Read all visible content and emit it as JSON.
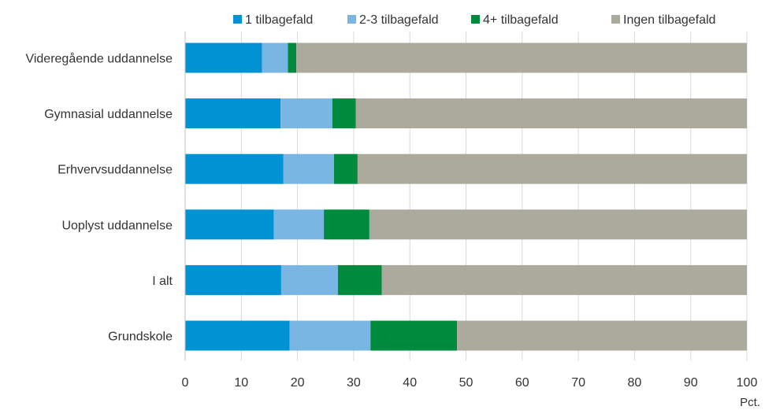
{
  "chart_data": {
    "type": "bar",
    "orientation": "horizontal",
    "stacked": true,
    "categories": [
      "Videregående uddannelse",
      "Gymnasial uddannelse",
      "Erhvervsuddannelse",
      "Uoplyst uddannelse",
      "I alt",
      "Grundskole"
    ],
    "series": [
      {
        "name": "1 tilbagefald",
        "color": "#0092d2",
        "values": [
          13.7,
          17.0,
          17.5,
          15.8,
          17.1,
          18.6
        ]
      },
      {
        "name": "2-3 tilbagefald",
        "color": "#7ab6e4",
        "values": [
          4.6,
          9.2,
          9.0,
          8.9,
          10.1,
          14.4
        ]
      },
      {
        "name": "4+ tilbagefald",
        "color": "#008a3e",
        "values": [
          1.5,
          4.2,
          4.2,
          8.1,
          7.8,
          15.4
        ]
      },
      {
        "name": "Ingen tilbagefald",
        "color": "#acaa9c",
        "values": [
          80.2,
          69.6,
          69.3,
          67.2,
          65.0,
          51.6
        ]
      }
    ],
    "xlim": [
      0,
      100
    ],
    "xticks": [
      "0",
      "10",
      "20",
      "30",
      "40",
      "50",
      "60",
      "70",
      "80",
      "90",
      "100"
    ],
    "xunit": "Pct.",
    "grid": "vertical",
    "legend_position": "top"
  }
}
